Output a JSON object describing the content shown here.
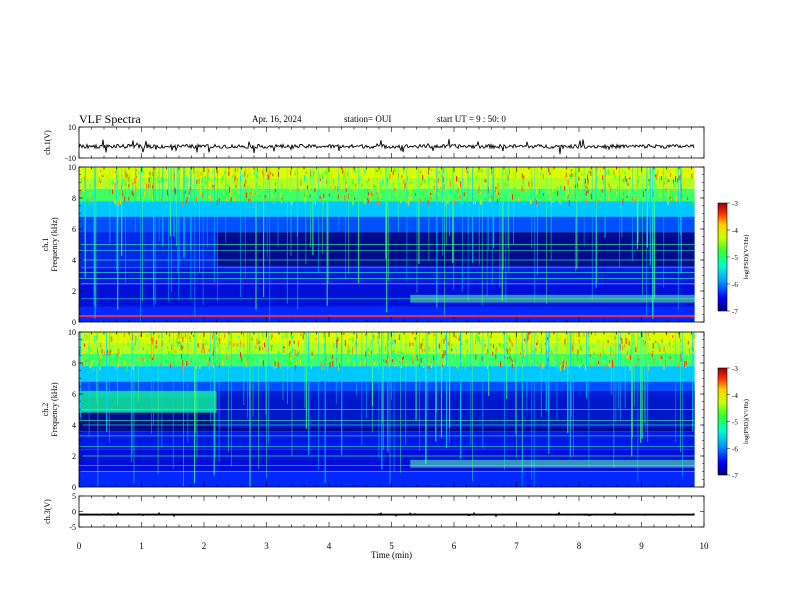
{
  "header": {
    "title": "VLF Spectra",
    "date": "Apr. 16, 2024",
    "station": "station= OUI",
    "start": "start  UT  =   9 : 50: 0"
  },
  "chart_data": [
    {
      "type": "line",
      "name": "ch1-waveform",
      "ylabel": "ch.1(V)",
      "ylim": [
        -10,
        10
      ],
      "yticks": [
        "10",
        "-10"
      ],
      "x_range_min": [
        0,
        9.85
      ],
      "description_free": true,
      "baseline_v": -2.5,
      "trace_color": "#000000"
    },
    {
      "type": "heatmap",
      "name": "ch1-spectrogram",
      "ylabel": "Frequency  (kHz)",
      "channel_label": "ch.1",
      "xlim": [
        0,
        10
      ],
      "ylim": [
        0,
        10
      ],
      "yticks": [
        "0",
        "2",
        "4",
        "6",
        "8",
        "10"
      ],
      "data_extent_min": 9.85,
      "colorbar": {
        "label": "log(PSD)(V²/Hz)",
        "range": [
          -7,
          -3
        ],
        "ticks": [
          "-3",
          "-4",
          "-5",
          "-6",
          "-7"
        ]
      },
      "lines_khz": [
        0.4,
        1.5,
        2.5,
        2.8,
        3.2,
        3.5,
        4.0,
        4.6,
        5.0
      ],
      "transition_min": 2.2
    },
    {
      "type": "heatmap",
      "name": "ch2-spectrogram",
      "ylabel": "Frequency  (kHz)",
      "channel_label": "ch.2",
      "xlim": [
        0,
        10
      ],
      "ylim": [
        0,
        10
      ],
      "yticks": [
        "0",
        "2",
        "4",
        "6",
        "8",
        "10"
      ],
      "data_extent_min": 9.85,
      "colorbar": {
        "label": "log(PSD)(V²/Hz)",
        "range": [
          -7,
          -3
        ],
        "ticks": [
          "-3",
          "-4",
          "-5",
          "-6",
          "-7"
        ]
      },
      "lines_khz": [
        1.0,
        1.4,
        2.0,
        2.6,
        3.3,
        4.0,
        4.3,
        5.0
      ],
      "transition_min": 2.2
    },
    {
      "type": "line",
      "name": "ch3-waveform",
      "ylabel": "ch.3(V)",
      "xlabel": "Time  (min)",
      "ylim": [
        -5,
        5
      ],
      "yticks": [
        "5",
        "0",
        "-5"
      ],
      "xlim": [
        0,
        10
      ],
      "xticks": [
        "0",
        "1",
        "2",
        "3",
        "4",
        "5",
        "6",
        "7",
        "8",
        "9",
        "10"
      ],
      "baseline_v": -1.0,
      "trace_color": "#000000"
    }
  ],
  "colormap": [
    "#00007a",
    "#0000ff",
    "#00a0ff",
    "#00ffd0",
    "#30ff30",
    "#c8ff00",
    "#ffd000",
    "#ff6000",
    "#d00000",
    "#800000"
  ]
}
